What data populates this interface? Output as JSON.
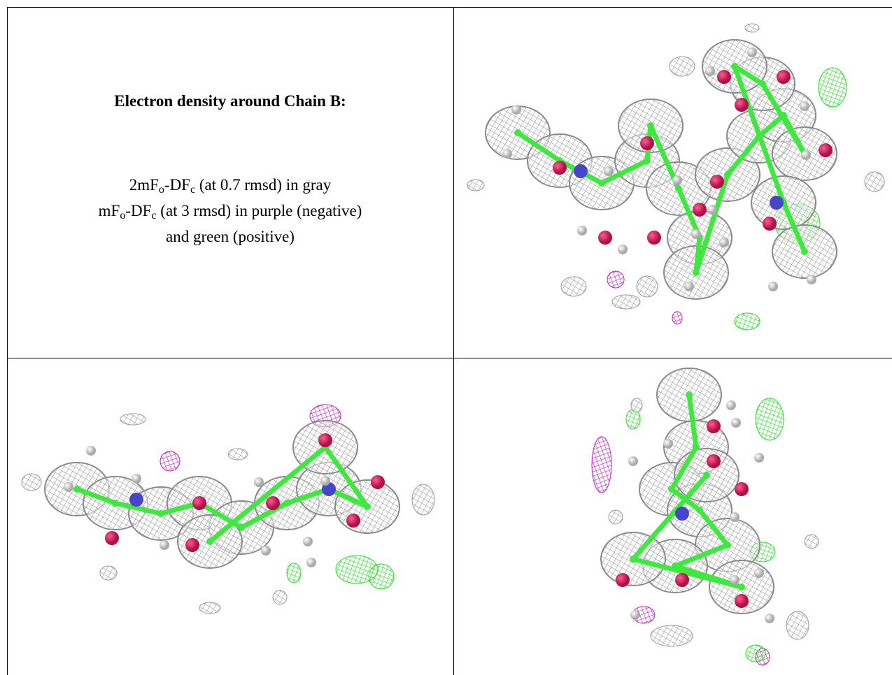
{
  "caption": {
    "title": "Electron density around Chain B:",
    "lines": [
      [
        "2mF",
        "o",
        "-DF",
        "c",
        " (at 0.7 rmsd) in gray"
      ],
      [
        "mF",
        "o",
        "-DF",
        "c",
        " (at 3 rmsd) in purple (negative)"
      ],
      [
        "and green (positive)"
      ]
    ]
  }
}
